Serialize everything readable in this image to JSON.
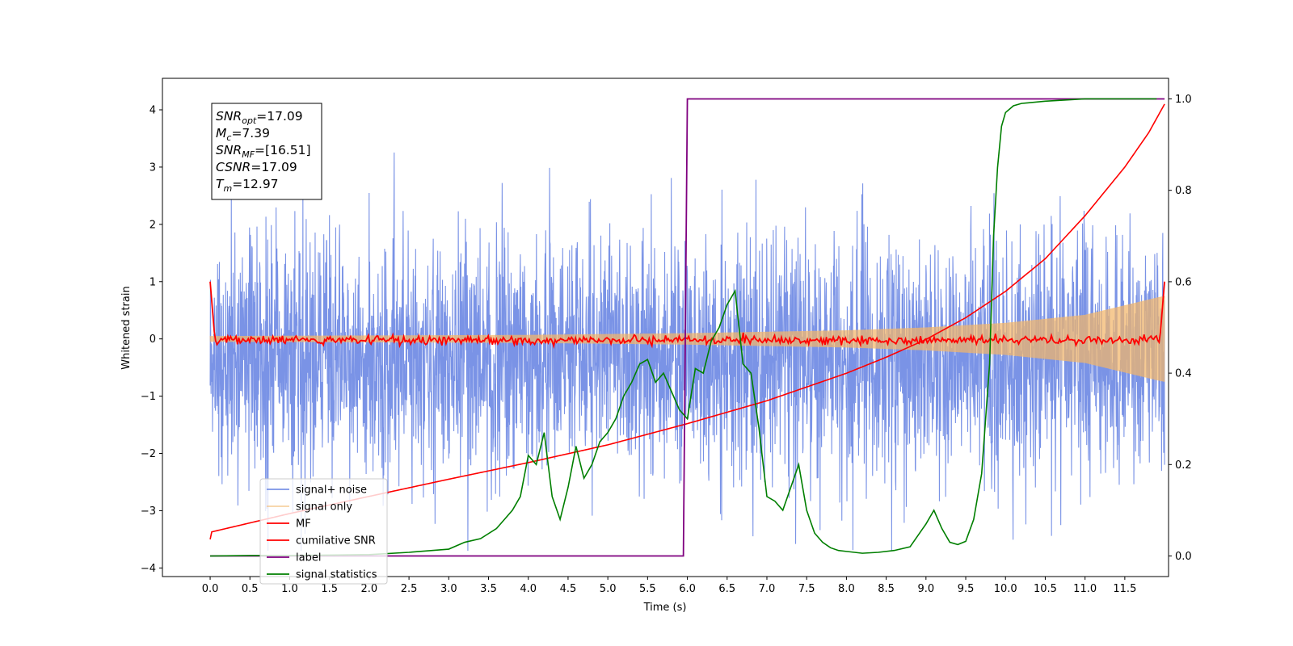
{
  "chart_data": {
    "type": "line",
    "xlabel": "Time (s)",
    "ylabel": "Whitened strain",
    "xlim": [
      -0.6,
      12.05
    ],
    "ylim": [
      -4.15,
      4.55
    ],
    "y2lim": [
      -0.045,
      1.045
    ],
    "xticks": [
      "0.0",
      "0.5",
      "1.0",
      "1.5",
      "2.0",
      "2.5",
      "3.0",
      "3.5",
      "4.0",
      "4.5",
      "5.0",
      "5.5",
      "6.0",
      "6.5",
      "7.0",
      "7.5",
      "8.0",
      "8.5",
      "9.0",
      "9.5",
      "10.0",
      "10.5",
      "11.0",
      "11.5"
    ],
    "yticks": [
      "−4",
      "−3",
      "−2",
      "−1",
      "0",
      "1",
      "2",
      "3",
      "4"
    ],
    "y2ticks": [
      "0.0",
      "0.2",
      "0.4",
      "0.6",
      "0.8",
      "1.0"
    ],
    "grid": false,
    "legend_position": "lower-left",
    "annotation": {
      "lines": [
        {
          "base": "SNR",
          "sub": "opt",
          "value": "=17.09"
        },
        {
          "base": "M",
          "sub": "c",
          "value": "=7.39"
        },
        {
          "base": "SNR",
          "sub": "MF",
          "value": "=[16.51]"
        },
        {
          "base": "CSNR",
          "sub": "",
          "value": "=17.09"
        },
        {
          "base": "T",
          "sub": "m",
          "value": "=12.97"
        }
      ]
    },
    "series": [
      {
        "name": "signal+ noise",
        "color": "#7a93e6",
        "axis": "left",
        "style": "noise",
        "t_range": [
          0.0,
          12.0
        ],
        "mean": -0.3,
        "std": 1.05,
        "y_min": -3.7,
        "y_max": 4.0
      },
      {
        "name": "signal only",
        "color": "#f2b66a",
        "axis": "left",
        "style": "chirp",
        "t_range": [
          0.0,
          12.0
        ],
        "envelope_t": [
          0.0,
          2.0,
          4.0,
          6.0,
          8.0,
          9.0,
          10.0,
          11.0,
          11.9,
          12.0
        ],
        "envelope_amp": [
          0.05,
          0.06,
          0.07,
          0.1,
          0.15,
          0.2,
          0.28,
          0.42,
          0.72,
          0.75
        ]
      },
      {
        "name": "MF",
        "color": "#ff0000",
        "axis": "left",
        "style": "mf",
        "endpoints": {
          "start": 1.0,
          "end": 1.0
        },
        "baseline": -0.02,
        "ripple": 0.05
      },
      {
        "name": "cumilative SNR",
        "color": "#ff0000",
        "axis": "left",
        "t": [
          0.0,
          0.02,
          1.0,
          2.0,
          3.0,
          4.0,
          5.0,
          6.0,
          7.0,
          8.0,
          8.5,
          9.0,
          9.5,
          10.0,
          10.5,
          11.0,
          11.5,
          11.8,
          12.0
        ],
        "y": [
          -3.5,
          -3.37,
          -3.05,
          -2.75,
          -2.45,
          -2.16,
          -1.85,
          -1.48,
          -1.08,
          -0.6,
          -0.32,
          -0.01,
          0.37,
          0.83,
          1.4,
          2.15,
          3.0,
          3.6,
          4.1
        ]
      },
      {
        "name": "label",
        "color": "#7f007f",
        "axis": "right",
        "t": [
          0.0,
          5.95,
          6.0,
          12.0
        ],
        "y": [
          0.0,
          0.0,
          1.0,
          1.0
        ]
      },
      {
        "name": "signal statistics",
        "color": "#007f00",
        "axis": "right",
        "t": [
          0.0,
          0.5,
          1.0,
          1.5,
          2.0,
          2.5,
          3.0,
          3.2,
          3.4,
          3.6,
          3.7,
          3.8,
          3.9,
          4.0,
          4.1,
          4.2,
          4.3,
          4.4,
          4.5,
          4.6,
          4.7,
          4.8,
          4.9,
          5.0,
          5.1,
          5.2,
          5.3,
          5.4,
          5.5,
          5.6,
          5.7,
          5.8,
          5.9,
          6.0,
          6.1,
          6.2,
          6.3,
          6.4,
          6.5,
          6.6,
          6.7,
          6.8,
          6.9,
          7.0,
          7.1,
          7.2,
          7.3,
          7.4,
          7.5,
          7.6,
          7.7,
          7.8,
          7.9,
          8.0,
          8.2,
          8.4,
          8.6,
          8.8,
          9.0,
          9.1,
          9.2,
          9.3,
          9.4,
          9.5,
          9.6,
          9.7,
          9.8,
          9.85,
          9.9,
          9.95,
          10.0,
          10.1,
          10.2,
          10.5,
          11.0,
          11.5,
          11.9
        ],
        "y": [
          0.0,
          0.001,
          0.001,
          0.002,
          0.003,
          0.008,
          0.015,
          0.03,
          0.038,
          0.06,
          0.08,
          0.1,
          0.13,
          0.22,
          0.2,
          0.27,
          0.13,
          0.08,
          0.15,
          0.24,
          0.17,
          0.2,
          0.25,
          0.27,
          0.3,
          0.35,
          0.38,
          0.42,
          0.43,
          0.38,
          0.4,
          0.36,
          0.32,
          0.3,
          0.41,
          0.4,
          0.47,
          0.5,
          0.55,
          0.58,
          0.42,
          0.4,
          0.28,
          0.13,
          0.12,
          0.1,
          0.15,
          0.2,
          0.1,
          0.05,
          0.03,
          0.018,
          0.012,
          0.01,
          0.006,
          0.008,
          0.012,
          0.02,
          0.07,
          0.1,
          0.06,
          0.03,
          0.025,
          0.032,
          0.08,
          0.18,
          0.42,
          0.7,
          0.85,
          0.94,
          0.97,
          0.985,
          0.99,
          0.995,
          1.0,
          1.0,
          1.0
        ]
      }
    ]
  }
}
